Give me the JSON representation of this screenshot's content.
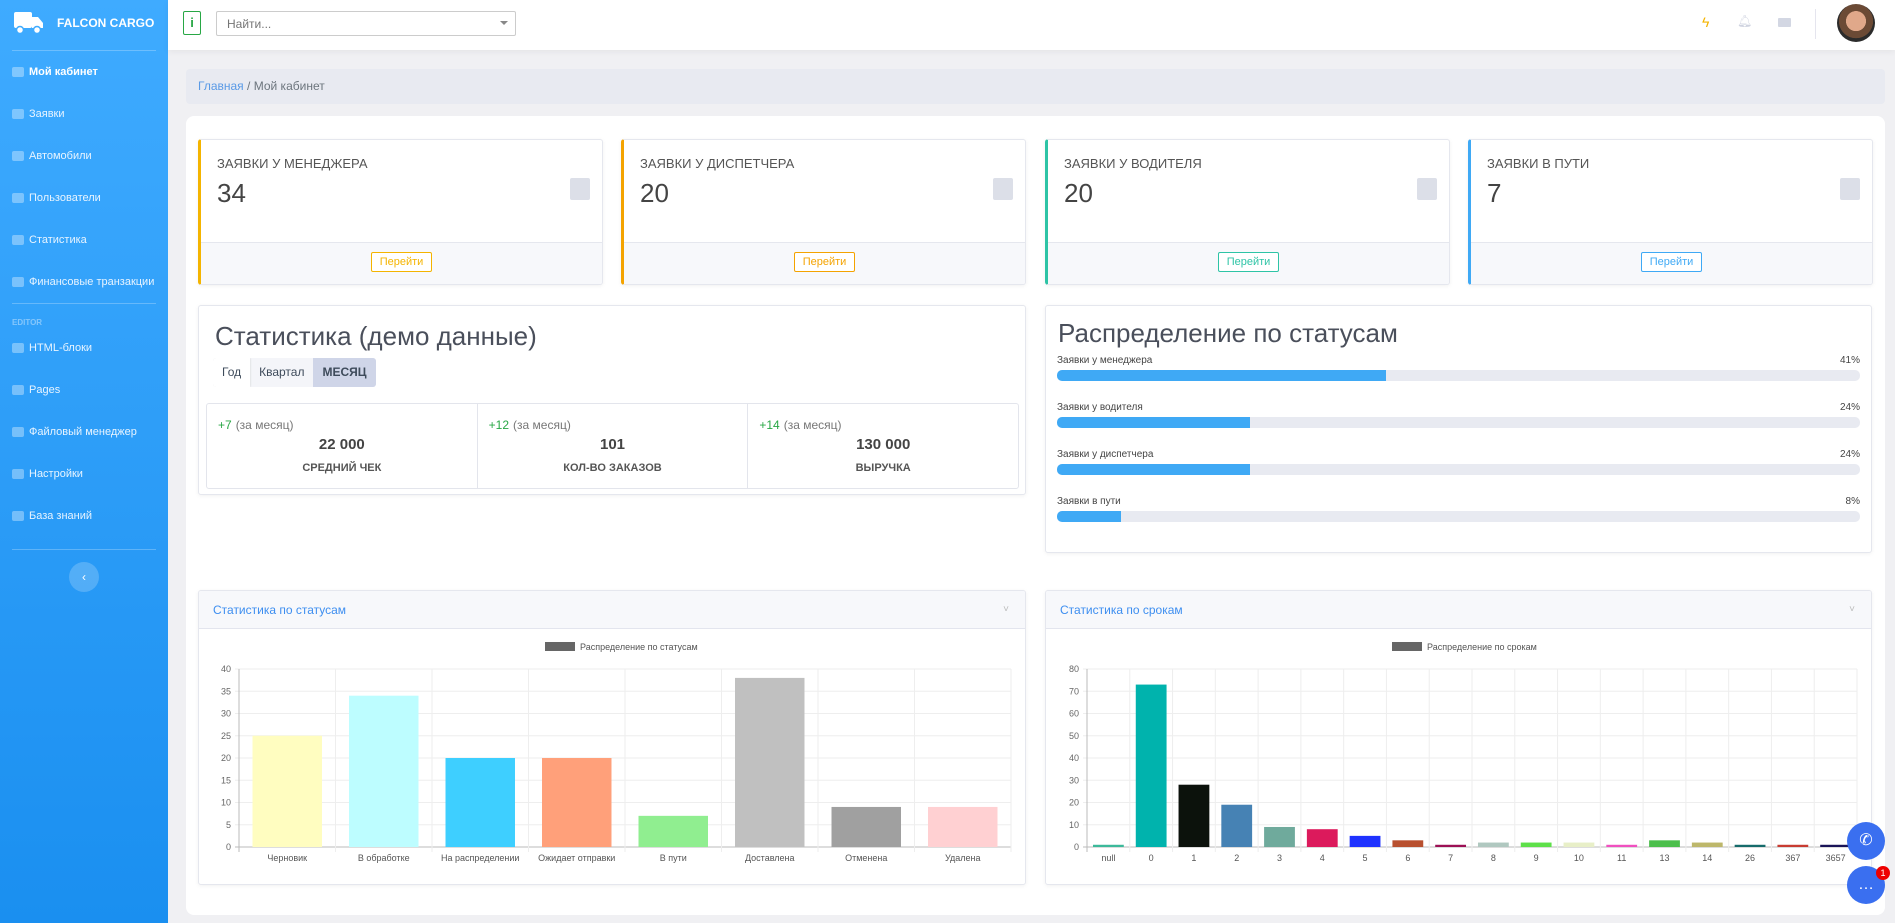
{
  "app": {
    "brand": "FALCON CARGO"
  },
  "sidebar": {
    "items": [
      {
        "label": "Мой кабинет",
        "icon": "dashboard-icon",
        "active": true
      },
      {
        "label": "Заявки",
        "icon": "list-icon"
      },
      {
        "label": "Автомобили",
        "icon": "truck-icon"
      },
      {
        "label": "Пользователи",
        "icon": "users-icon"
      },
      {
        "label": "Статистика",
        "icon": "chart-icon"
      },
      {
        "label": "Финансовые транзакции",
        "icon": "money-icon"
      }
    ],
    "section": "EDITOR",
    "editor_items": [
      {
        "label": "HTML-блоки",
        "icon": "code-icon"
      },
      {
        "label": "Pages",
        "icon": "page-icon"
      },
      {
        "label": "Файловый менеджер",
        "icon": "folder-icon"
      },
      {
        "label": "Настройки",
        "icon": "gear-icon"
      },
      {
        "label": "База знаний",
        "icon": "graduation-icon"
      }
    ],
    "collapse": "‹"
  },
  "header": {
    "info": "i",
    "search_placeholder": "Найти...",
    "icons": [
      "bolt-icon",
      "bell-icon",
      "mail-icon"
    ]
  },
  "breadcrumb": {
    "home": "Главная",
    "sep": "/",
    "current": "Мой кабинет"
  },
  "stat_cards": [
    {
      "title": "ЗАЯВКИ У МЕНЕДЖЕРА",
      "value": "34",
      "button": "Перейти",
      "color": "#f4b400"
    },
    {
      "title": "ЗАЯВКИ У ДИСПЕТЧЕРА",
      "value": "20",
      "button": "Перейти",
      "color": "#f4a300"
    },
    {
      "title": "ЗАЯВКИ У ВОДИТЕЛЯ",
      "value": "20",
      "button": "Перейти",
      "color": "#2ec4a6"
    },
    {
      "title": "ЗАЯВКИ В ПУТИ",
      "value": "7",
      "button": "Перейти",
      "color": "#3fa9f5"
    }
  ],
  "stats": {
    "title": "Статистика (демо данные)",
    "tabs": [
      "Год",
      "Квартал",
      "МЕСЯЦ"
    ],
    "active_tab": "МЕСЯЦ",
    "kpis": [
      {
        "delta": "+7",
        "period": "(за месяц)",
        "value": "22 000",
        "label": "СРЕДНИЙ ЧЕК"
      },
      {
        "delta": "+12",
        "period": "(за месяц)",
        "value": "101",
        "label": "КОЛ-ВО ЗАКАЗОВ"
      },
      {
        "delta": "+14",
        "period": "(за месяц)",
        "value": "130 000",
        "label": "ВЫРУЧКА"
      }
    ]
  },
  "distribution": {
    "title": "Распределение по статусам",
    "items": [
      {
        "label": "Заявки у менеджера",
        "percent": 41,
        "text": "41%"
      },
      {
        "label": "Заявки у водителя",
        "percent": 24,
        "text": "24%"
      },
      {
        "label": "Заявки у диспетчера",
        "percent": 24,
        "text": "24%"
      },
      {
        "label": "Заявки в пути",
        "percent": 8,
        "text": "8%"
      }
    ]
  },
  "panels": {
    "status": "Статистика по статусам",
    "terms": "Статистика по срокам",
    "chev": "˅"
  },
  "chart_data": [
    {
      "type": "bar",
      "legend": "Распределение по статусам",
      "legend_position": "top",
      "grid": true,
      "categories": [
        "Черновик",
        "В обработке",
        "На распределении",
        "Ожидает отправки",
        "В пути",
        "Доставлена",
        "Отменена",
        "Удалена"
      ],
      "values": [
        25,
        34,
        20,
        20,
        7,
        38,
        9,
        9
      ],
      "colors": [
        "#fffdc0",
        "#bdfdff",
        "#3ecfff",
        "#ffa07a",
        "#90ee90",
        "#c0c0c0",
        "#a0a0a0",
        "#ffd0d2"
      ],
      "ylim": [
        0,
        40
      ],
      "yticks": [
        0,
        5,
        10,
        15,
        20,
        25,
        30,
        35,
        40
      ]
    },
    {
      "type": "bar",
      "legend": "Распределение по срокам",
      "legend_position": "top",
      "grid": true,
      "categories": [
        "null",
        "0",
        "1",
        "2",
        "3",
        "4",
        "5",
        "6",
        "7",
        "8",
        "9",
        "10",
        "11",
        "13",
        "14",
        "26",
        "367",
        "3657"
      ],
      "values": [
        1,
        73,
        28,
        19,
        9,
        8,
        5,
        3,
        1,
        2,
        2,
        2,
        1,
        3,
        2,
        1,
        1,
        1
      ],
      "colors": [
        "#3cb99a",
        "#00b3ad",
        "#0c120c",
        "#4682b4",
        "#6faa9c",
        "#dc1a5c",
        "#1e32ff",
        "#b8502f",
        "#9c1055",
        "#b0c8c0",
        "#5ee04a",
        "#e8efc8",
        "#f050c0",
        "#4cbf4c",
        "#bdb76b",
        "#166b6b",
        "#c83c32",
        "#1a1458"
      ],
      "ylim": [
        0,
        80
      ],
      "yticks": [
        0,
        10,
        20,
        30,
        40,
        50,
        60,
        70,
        80
      ]
    }
  ]
}
